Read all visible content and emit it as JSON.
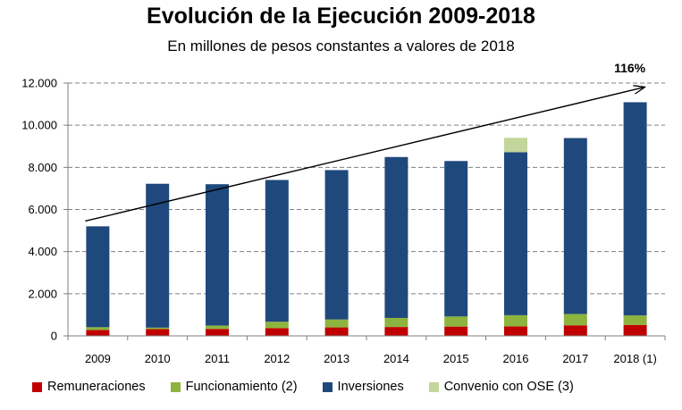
{
  "chart_data": {
    "type": "bar",
    "stacked": true,
    "title": "Evolución de la Ejecución 2009-2018",
    "subtitle": "En millones de pesos constantes a valores de 2018",
    "categories": [
      "2009",
      "2010",
      "2011",
      "2012",
      "2013",
      "2014",
      "2015",
      "2016",
      "2017",
      "2018 (1)"
    ],
    "series": [
      {
        "name": "Remuneraciones",
        "color": "#C00000",
        "values": [
          280,
          320,
          330,
          370,
          400,
          420,
          440,
          450,
          500,
          520
        ]
      },
      {
        "name": "Funcionamiento (2)",
        "color": "#8DB43E",
        "values": [
          130,
          70,
          160,
          300,
          380,
          430,
          480,
          530,
          540,
          450
        ]
      },
      {
        "name": "Inversiones",
        "color": "#1F497D",
        "values": [
          4790,
          6830,
          6710,
          6730,
          7090,
          7640,
          7380,
          7740,
          8350,
          10120
        ]
      },
      {
        "name": "Convenio con OSE (3)",
        "color": "#C3D69B",
        "values": [
          0,
          0,
          0,
          0,
          0,
          0,
          0,
          680,
          0,
          0
        ]
      }
    ],
    "ylim": [
      0,
      12000
    ],
    "yticks": [
      0,
      2000,
      4000,
      6000,
      8000,
      10000,
      12000
    ],
    "ytick_labels": [
      "0",
      "2.000",
      "4.000",
      "6.000",
      "8.000",
      "10.000",
      "12.000"
    ],
    "trend": {
      "from_value": 5450,
      "to_value": 11800,
      "label": "116%"
    },
    "xlabel": "",
    "ylabel": ""
  }
}
